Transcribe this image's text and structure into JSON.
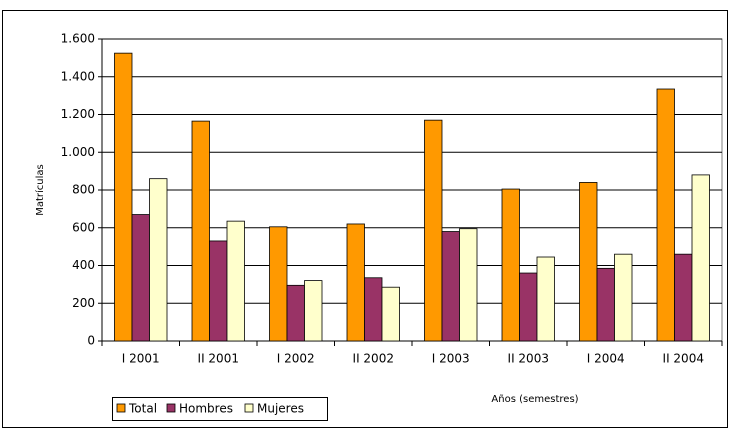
{
  "chart_data": {
    "type": "bar",
    "x_label": "Años (semestres)",
    "y_label": "Matrículas",
    "categories": [
      "I 2001",
      "II 2001",
      "I 2002",
      "II 2002",
      "I 2003",
      "II 2003",
      "I 2004",
      "II 2004"
    ],
    "series": [
      {
        "name": "Total",
        "color": "#ff9900",
        "values": [
          1525,
          1165,
          605,
          620,
          1170,
          805,
          840,
          1335
        ]
      },
      {
        "name": "Hombres",
        "color": "#993366",
        "values": [
          670,
          530,
          295,
          335,
          580,
          360,
          385,
          460
        ]
      },
      {
        "name": "Mujeres",
        "color": "#ffffcc",
        "values": [
          860,
          635,
          320,
          285,
          595,
          445,
          460,
          880
        ]
      }
    ],
    "ylim": [
      0,
      1600
    ],
    "yticks": [
      0,
      200,
      400,
      600,
      800,
      {
        "value": 1000,
        "label": "1.000"
      },
      {
        "value": 1200,
        "label": "1.200"
      },
      {
        "value": 1400,
        "label": "1.400"
      },
      {
        "value": 1600,
        "label": "1.600"
      }
    ],
    "grid": true,
    "legend": "bottom-left"
  }
}
